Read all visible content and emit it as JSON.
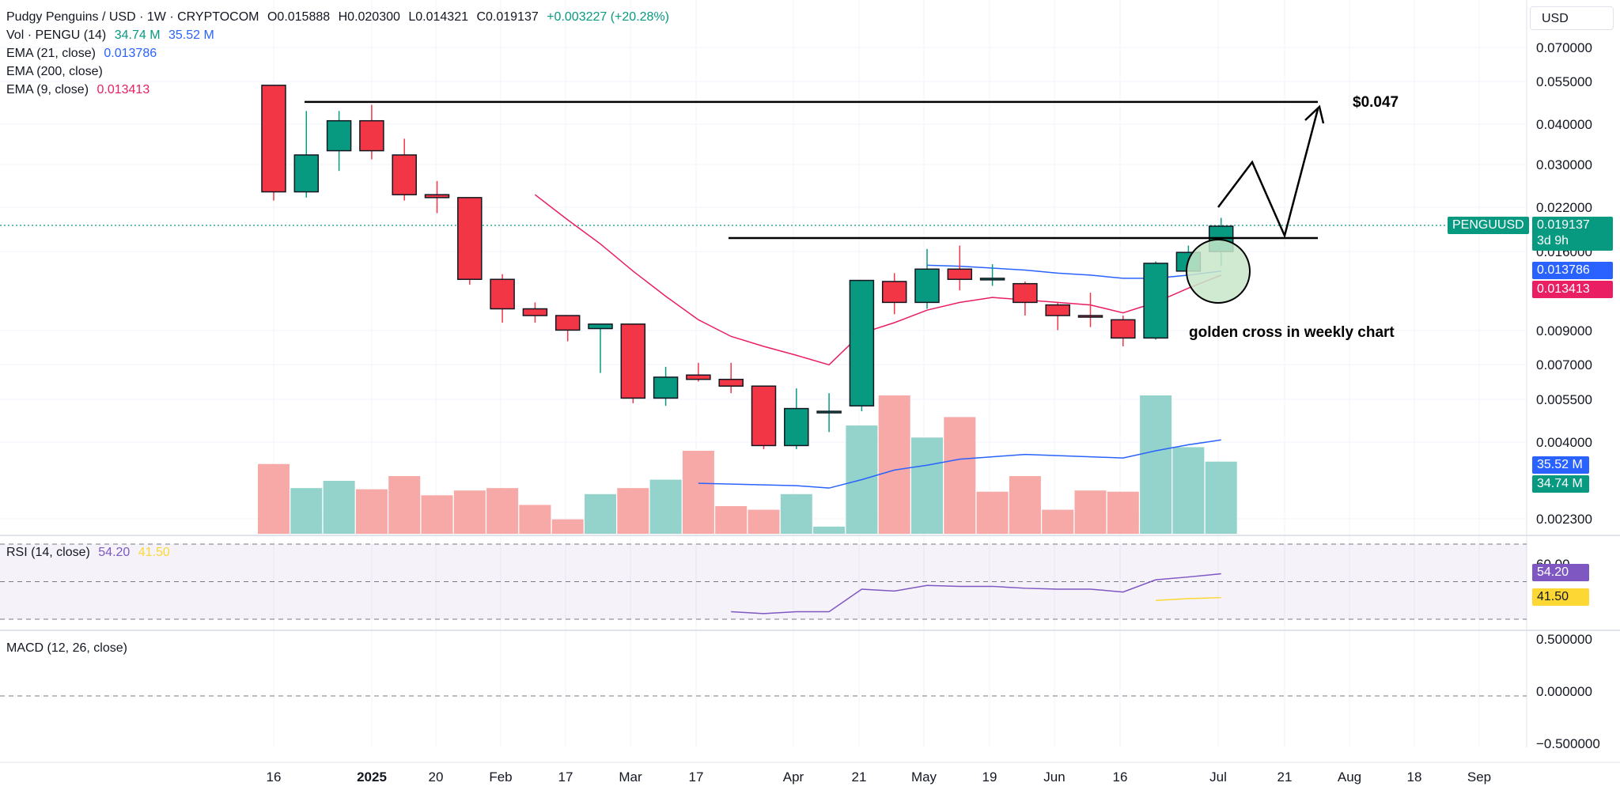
{
  "header": {
    "symbol_line": "Pudgy Penguins / USD · 1W · CRYPTOCOM",
    "open": "O0.015888",
    "high": "H0.020300",
    "low": "L0.014321",
    "close": "C0.019137",
    "change": "+0.003227 (+20.28%)",
    "change_color": "#089981"
  },
  "legend": {
    "vol_label": "Vol · PENGU (14)",
    "vol_value": "34.74 M",
    "vol_ma_value": "35.52 M",
    "ema21_label": "EMA (21, close)",
    "ema21_value": "0.013786",
    "ema200_label": "EMA (200, close)",
    "ema9_label": "EMA (9, close)",
    "ema9_value": "0.013413",
    "rsi_label": "RSI (14, close)",
    "rsi_value": "54.20",
    "rsi_ma_value": "41.50",
    "macd_label": "MACD (12, 26, close)"
  },
  "currency_button": "USD",
  "price_tags": {
    "symbol": "PENGUUSD",
    "last": "0.019137",
    "countdown": "3d 9h",
    "ema21": "0.013786",
    "ema9": "0.013413",
    "vol_ma": "35.52 M",
    "vol": "34.74 M",
    "rsi": "54.20",
    "rsi_ma": "41.50"
  },
  "annotations": {
    "target": "$0.047",
    "note": "golden cross in weekly chart"
  },
  "colors": {
    "up": "#089981",
    "down": "#f23645",
    "up_body": "#089981",
    "down_body": "#f23645",
    "vol_up": "#94d3cc",
    "vol_down": "#f7a9a7",
    "ema21": "#2962ff",
    "ema9": "#e91e63",
    "rsi": "#7e57c2",
    "rsi_ma": "#fdd835",
    "circle_fill": "#c8e6c9",
    "tag_text": "#ffffff"
  },
  "chart_data": {
    "type": "candlestick",
    "timeframe": "1W",
    "x_tick_labels": [
      "16",
      "2025",
      "20",
      "Feb",
      "17",
      "Mar",
      "17",
      "Apr",
      "21",
      "May",
      "19",
      "Jun",
      "16",
      "Jul",
      "21",
      "Aug",
      "18",
      "Sep"
    ],
    "y_scale": "log",
    "y_tick_labels": [
      "0.070000",
      "0.055000",
      "0.040000",
      "0.030000",
      "0.022000",
      "0.016000",
      "0.009000",
      "0.007000",
      "0.005500",
      "0.004000",
      "0.002300"
    ],
    "candles": [
      {
        "o": 0.053,
        "h": 0.053,
        "l": 0.023,
        "c": 0.0245
      },
      {
        "o": 0.0245,
        "h": 0.044,
        "l": 0.0235,
        "c": 0.032
      },
      {
        "o": 0.033,
        "h": 0.044,
        "l": 0.0285,
        "c": 0.041
      },
      {
        "o": 0.041,
        "h": 0.046,
        "l": 0.031,
        "c": 0.033
      },
      {
        "o": 0.032,
        "h": 0.036,
        "l": 0.023,
        "c": 0.024
      },
      {
        "o": 0.024,
        "h": 0.0265,
        "l": 0.021,
        "c": 0.0235
      },
      {
        "o": 0.0235,
        "h": 0.0235,
        "l": 0.0125,
        "c": 0.013
      },
      {
        "o": 0.013,
        "h": 0.0135,
        "l": 0.0095,
        "c": 0.0105
      },
      {
        "o": 0.0105,
        "h": 0.011,
        "l": 0.0095,
        "c": 0.01
      },
      {
        "o": 0.01,
        "h": 0.01,
        "l": 0.0083,
        "c": 0.009
      },
      {
        "o": 0.0091,
        "h": 0.0094,
        "l": 0.0066,
        "c": 0.0094
      },
      {
        "o": 0.0094,
        "h": 0.0094,
        "l": 0.0053,
        "c": 0.0055
      },
      {
        "o": 0.0055,
        "h": 0.0069,
        "l": 0.0052,
        "c": 0.0064
      },
      {
        "o": 0.0065,
        "h": 0.0071,
        "l": 0.0062,
        "c": 0.0063
      },
      {
        "o": 0.0063,
        "h": 0.0071,
        "l": 0.0057,
        "c": 0.006
      },
      {
        "o": 0.006,
        "h": 0.006,
        "l": 0.0038,
        "c": 0.0039
      },
      {
        "o": 0.0039,
        "h": 0.0059,
        "l": 0.0038,
        "c": 0.0051
      },
      {
        "o": 0.005,
        "h": 0.0057,
        "l": 0.0043,
        "c": 0.005
      },
      {
        "o": 0.0052,
        "h": 0.0129,
        "l": 0.005,
        "c": 0.0129
      },
      {
        "o": 0.0128,
        "h": 0.0136,
        "l": 0.0101,
        "c": 0.011
      },
      {
        "o": 0.011,
        "h": 0.0162,
        "l": 0.0105,
        "c": 0.014
      },
      {
        "o": 0.014,
        "h": 0.0166,
        "l": 0.012,
        "c": 0.013
      },
      {
        "o": 0.013,
        "h": 0.0145,
        "l": 0.0124,
        "c": 0.0131
      },
      {
        "o": 0.0126,
        "h": 0.0128,
        "l": 0.01,
        "c": 0.011
      },
      {
        "o": 0.0108,
        "h": 0.011,
        "l": 0.009,
        "c": 0.01
      },
      {
        "o": 0.01,
        "h": 0.0118,
        "l": 0.0092,
        "c": 0.0099
      },
      {
        "o": 0.0097,
        "h": 0.01,
        "l": 0.008,
        "c": 0.0085
      },
      {
        "o": 0.0085,
        "h": 0.0148,
        "l": 0.0084,
        "c": 0.0146
      },
      {
        "o": 0.0138,
        "h": 0.0166,
        "l": 0.014,
        "c": 0.0158
      },
      {
        "o": 0.0159,
        "h": 0.0203,
        "l": 0.0143,
        "c": 0.0191
      }
    ],
    "ema21": [
      {
        "i": 8,
        "v": 0.024
      },
      {
        "i": 9,
        "v": 0.0205
      },
      {
        "i": 10,
        "v": 0.017
      },
      {
        "i": 11,
        "v": 0.014
      },
      {
        "i": 12,
        "v": 0.0117
      },
      {
        "i": 13,
        "v": 0.0098
      },
      {
        "i": 14,
        "v": 0.0087
      },
      {
        "i": 15,
        "v": 0.0082
      },
      {
        "i": 16,
        "v": 0.0077
      },
      {
        "i": 17,
        "v": 0.0072
      },
      {
        "i": 18,
        "v": 0.0082
      },
      {
        "i": 19,
        "v": 0.009
      },
      {
        "i": 20,
        "v": 0.01
      }
    ],
    "ema9": [
      {
        "i": 8,
        "v": 0.024
      },
      {
        "i": 9,
        "v": 0.02
      },
      {
        "i": 10,
        "v": 0.0168
      },
      {
        "i": 11,
        "v": 0.0138
      },
      {
        "i": 12,
        "v": 0.0115
      },
      {
        "i": 13,
        "v": 0.0097
      },
      {
        "i": 14,
        "v": 0.0086
      },
      {
        "i": 15,
        "v": 0.008
      },
      {
        "i": 16,
        "v": 0.0075
      },
      {
        "i": 17,
        "v": 0.007
      },
      {
        "i": 18,
        "v": 0.0088
      },
      {
        "i": 19,
        "v": 0.0095
      },
      {
        "i": 20,
        "v": 0.0104
      },
      {
        "i": 21,
        "v": 0.011
      },
      {
        "i": 22,
        "v": 0.0114
      },
      {
        "i": 23,
        "v": 0.0112
      },
      {
        "i": 24,
        "v": 0.011
      },
      {
        "i": 25,
        "v": 0.0108
      },
      {
        "i": 26,
        "v": 0.0102
      },
      {
        "i": 27,
        "v": 0.011
      },
      {
        "i": 28,
        "v": 0.0122
      },
      {
        "i": 29,
        "v": 0.0134
      }
    ],
    "ema21_late": [
      {
        "i": 20,
        "v": 0.0144
      },
      {
        "i": 21,
        "v": 0.0143
      },
      {
        "i": 22,
        "v": 0.0141
      },
      {
        "i": 23,
        "v": 0.0139
      },
      {
        "i": 24,
        "v": 0.0136
      },
      {
        "i": 25,
        "v": 0.0134
      },
      {
        "i": 26,
        "v": 0.0131
      },
      {
        "i": 27,
        "v": 0.0131
      },
      {
        "i": 28,
        "v": 0.0134
      },
      {
        "i": 29,
        "v": 0.0138
      }
    ],
    "volume": [
      {
        "v": 0.58,
        "up": false
      },
      {
        "v": 0.38,
        "up": true
      },
      {
        "v": 0.44,
        "up": true
      },
      {
        "v": 0.37,
        "up": false
      },
      {
        "v": 0.48,
        "up": false
      },
      {
        "v": 0.32,
        "up": false
      },
      {
        "v": 0.36,
        "up": false
      },
      {
        "v": 0.38,
        "up": false
      },
      {
        "v": 0.24,
        "up": false
      },
      {
        "v": 0.12,
        "up": false
      },
      {
        "v": 0.33,
        "up": true
      },
      {
        "v": 0.38,
        "up": false
      },
      {
        "v": 0.45,
        "up": true
      },
      {
        "v": 0.69,
        "up": false
      },
      {
        "v": 0.23,
        "up": false
      },
      {
        "v": 0.2,
        "up": false
      },
      {
        "v": 0.33,
        "up": true
      },
      {
        "v": 0.06,
        "up": true
      },
      {
        "v": 0.9,
        "up": true
      },
      {
        "v": 1.15,
        "up": false
      },
      {
        "v": 0.8,
        "up": true
      },
      {
        "v": 0.97,
        "up": false
      },
      {
        "v": 0.35,
        "up": false
      },
      {
        "v": 0.48,
        "up": false
      },
      {
        "v": 0.2,
        "up": false
      },
      {
        "v": 0.36,
        "up": false
      },
      {
        "v": 0.35,
        "up": false
      },
      {
        "v": 1.15,
        "up": true
      },
      {
        "v": 0.72,
        "up": true
      },
      {
        "v": 0.6,
        "up": true
      }
    ],
    "volume_ma": [
      {
        "i": 13,
        "v": 0.42
      },
      {
        "i": 16,
        "v": 0.4
      },
      {
        "i": 17,
        "v": 0.38
      },
      {
        "i": 18,
        "v": 0.45
      },
      {
        "i": 19,
        "v": 0.53
      },
      {
        "i": 20,
        "v": 0.57
      },
      {
        "i": 21,
        "v": 0.62
      },
      {
        "i": 22,
        "v": 0.64
      },
      {
        "i": 23,
        "v": 0.66
      },
      {
        "i": 24,
        "v": 0.65
      },
      {
        "i": 25,
        "v": 0.64
      },
      {
        "i": 26,
        "v": 0.63
      },
      {
        "i": 27,
        "v": 0.69
      },
      {
        "i": 28,
        "v": 0.74
      },
      {
        "i": 29,
        "v": 0.78
      }
    ],
    "rsi": [
      {
        "i": 14,
        "v": 34
      },
      {
        "i": 15,
        "v": 33
      },
      {
        "i": 16,
        "v": 34
      },
      {
        "i": 17,
        "v": 34
      },
      {
        "i": 18,
        "v": 46
      },
      {
        "i": 19,
        "v": 45
      },
      {
        "i": 20,
        "v": 48
      },
      {
        "i": 21,
        "v": 47.5
      },
      {
        "i": 22,
        "v": 47.5
      },
      {
        "i": 23,
        "v": 46.5
      },
      {
        "i": 24,
        "v": 46
      },
      {
        "i": 25,
        "v": 46
      },
      {
        "i": 26,
        "v": 44.5
      },
      {
        "i": 27,
        "v": 51
      },
      {
        "i": 28,
        "v": 52.5
      },
      {
        "i": 29,
        "v": 54.2
      }
    ],
    "rsi_ma": [
      {
        "i": 27,
        "v": 40
      },
      {
        "i": 28,
        "v": 41
      },
      {
        "i": 29,
        "v": 41.5
      }
    ],
    "rsi_levels": [
      70,
      50,
      30
    ],
    "rsi_tick_label": "60.00",
    "macd_y_tick_labels": [
      "0.500000",
      "0.000000",
      "−0.500000"
    ],
    "resistance_levels": [
      0.047,
      0.0165
    ],
    "projection_target": "$0.047"
  }
}
